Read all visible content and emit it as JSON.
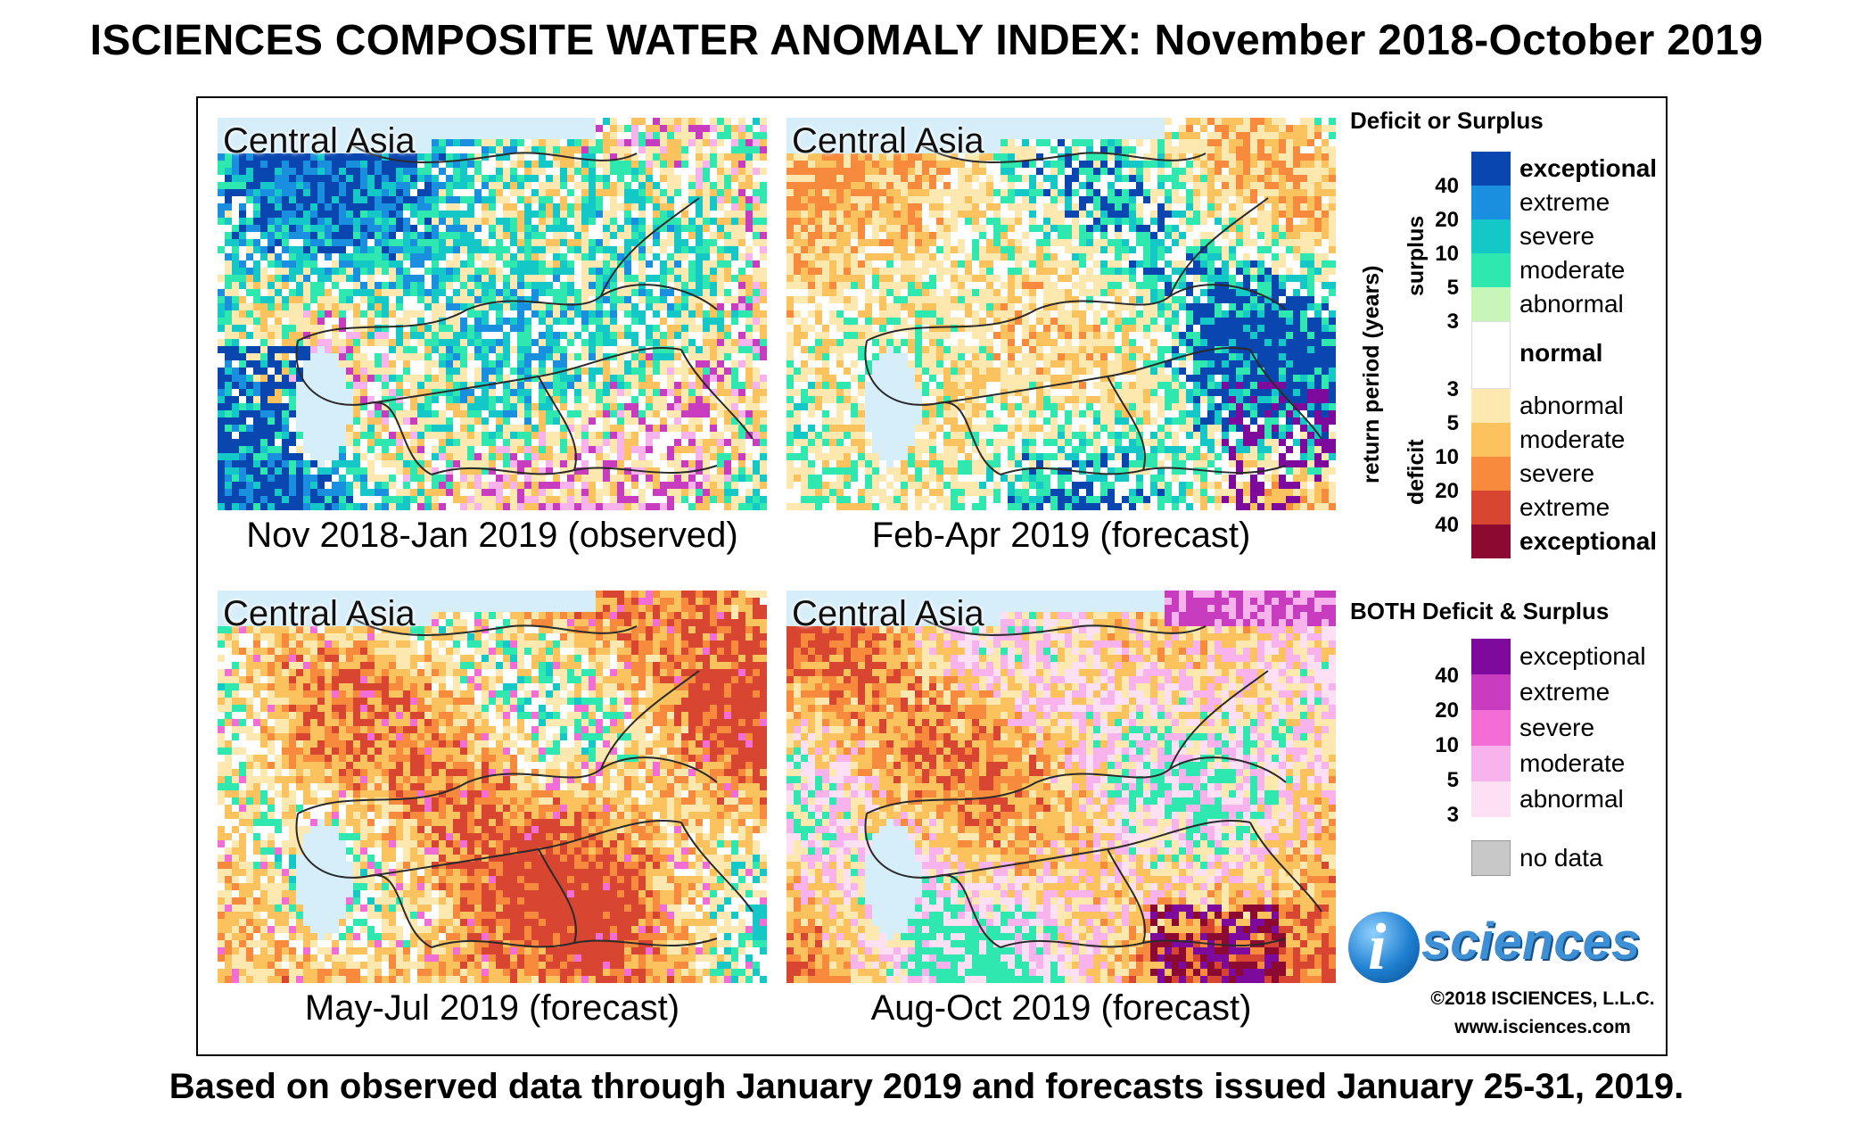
{
  "title": "ISCIENCES COMPOSITE WATER ANOMALY INDEX: November 2018-October 2019",
  "footer": "Based on observed data through January 2019 and forecasts issued January 25-31, 2019.",
  "region_label": "Central Asia",
  "panels": [
    {
      "caption": "Nov 2018-Jan 2019 (observed)",
      "regime": "surplus"
    },
    {
      "caption": "Feb-Apr 2019 (forecast)",
      "regime": "mixed"
    },
    {
      "caption": "May-Jul 2019 (forecast)",
      "regime": "deficit"
    },
    {
      "caption": "Aug-Oct 2019 (forecast)",
      "regime": "deficit_both"
    }
  ],
  "legend": {
    "heading": "Deficit or Surplus",
    "axis_label": "return period (years)",
    "surplus_label": "surplus",
    "deficit_label": "deficit",
    "normal_label": "normal",
    "surplus": [
      {
        "label": "exceptional",
        "color": "#0a46b0"
      },
      {
        "label": "extreme",
        "color": "#1a8fe0"
      },
      {
        "label": "severe",
        "color": "#14c8c8"
      },
      {
        "label": "moderate",
        "color": "#2ee8b0"
      },
      {
        "label": "abnormal",
        "color": "#c8f5b8"
      }
    ],
    "surplus_ticks": [
      "40",
      "20",
      "10",
      "5",
      "3"
    ],
    "normal_color": "#ffffff",
    "deficit": [
      {
        "label": "abnormal",
        "color": "#fde9b0"
      },
      {
        "label": "moderate",
        "color": "#fbc25e"
      },
      {
        "label": "severe",
        "color": "#f78a3c"
      },
      {
        "label": "extreme",
        "color": "#d84530"
      },
      {
        "label": "exceptional",
        "color": "#8c0a32"
      }
    ],
    "deficit_ticks": [
      "3",
      "5",
      "10",
      "20",
      "40"
    ],
    "both_heading": "BOTH Deficit & Surplus",
    "both": [
      {
        "label": "exceptional",
        "color": "#7d0a9c"
      },
      {
        "label": "extreme",
        "color": "#c83cc0"
      },
      {
        "label": "severe",
        "color": "#f26ed6"
      },
      {
        "label": "moderate",
        "color": "#f8b2ec"
      },
      {
        "label": "abnormal",
        "color": "#fde0f4"
      }
    ],
    "both_ticks": [
      "40",
      "20",
      "10",
      "5",
      "3"
    ],
    "nodata_label": "no data",
    "nodata_color": "#c8c8c8"
  },
  "logo_text": "sciences",
  "logo_letter": "i",
  "copyright": "©2018 ISCIENCES, L.L.C.",
  "website": "www.isciences.com",
  "water_color": "#d6eefa"
}
